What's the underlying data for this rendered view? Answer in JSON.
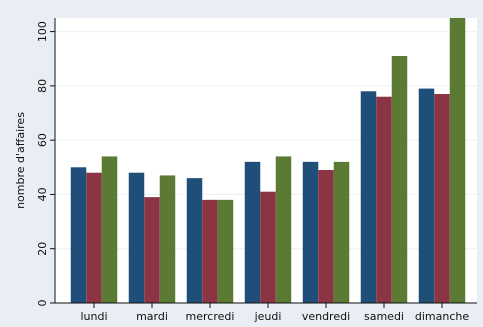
{
  "chart_data": {
    "type": "bar",
    "title": "",
    "xlabel": "",
    "ylabel": "nombre d'affaires",
    "categories": [
      "lundi",
      "mardi",
      "mercredi",
      "jeudi",
      "vendredi",
      "samedi",
      "dimanche"
    ],
    "series": [
      {
        "values": [
          50,
          48,
          46,
          52,
          52,
          78,
          79
        ]
      },
      {
        "values": [
          48,
          39,
          38,
          41,
          49,
          76,
          77
        ]
      },
      {
        "values": [
          54,
          47,
          38,
          54,
          52,
          91,
          105
        ]
      }
    ],
    "ylim": [
      0,
      105
    ],
    "yticks": [
      0,
      20,
      40,
      60,
      80,
      100
    ],
    "grid": true,
    "legend": "none",
    "colors": {
      "series": [
        "#1f4e79",
        "#8b3444",
        "#5b7a33"
      ],
      "plot_background": "#ffffff",
      "outer_background": "#e8eef3",
      "grid": "#eaf0f4"
    }
  }
}
